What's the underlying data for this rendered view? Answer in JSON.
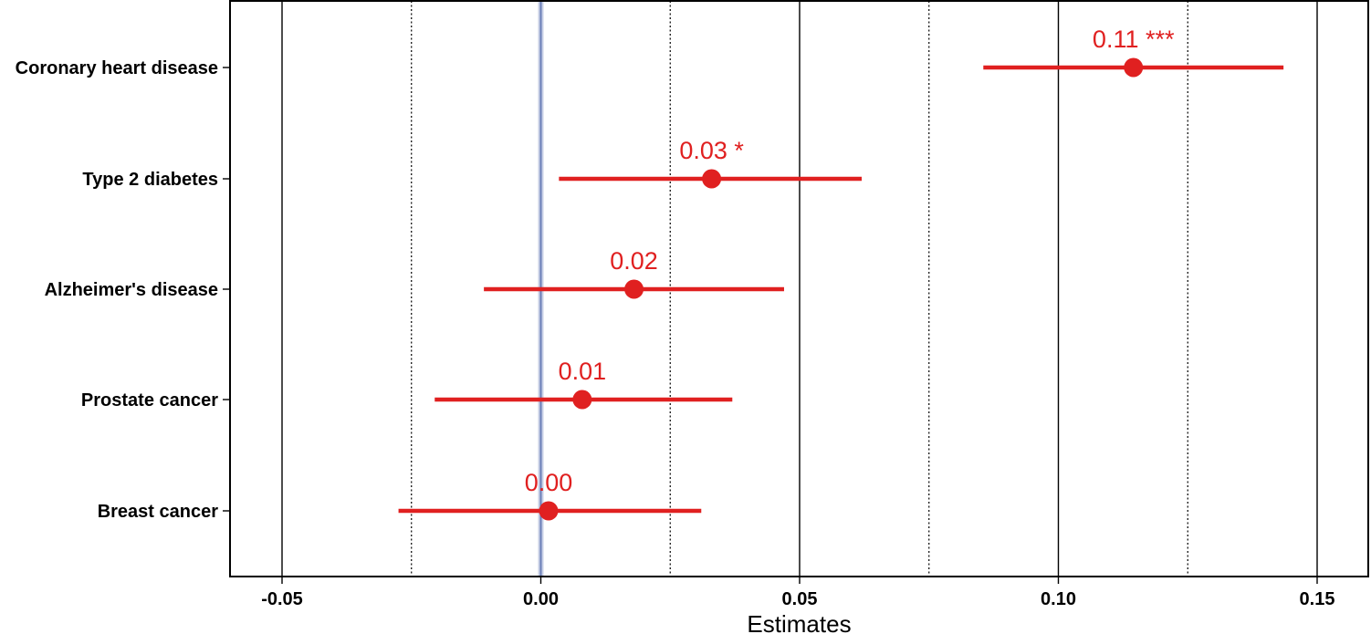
{
  "chart_data": {
    "type": "forest",
    "xlabel": "Estimates",
    "xlim": [
      -0.06,
      0.16
    ],
    "x_ticks": [
      -0.05,
      0.0,
      0.05,
      0.1,
      0.15
    ],
    "x_tick_labels": [
      "-0.05",
      "0.00",
      "0.05",
      "0.10",
      "0.15"
    ],
    "minor_gridlines": [
      -0.025,
      0.025,
      0.075,
      0.125
    ],
    "reference_line": 0,
    "grid": true,
    "colors": {
      "points": "#e02020",
      "reference": "#6b7fb8",
      "grid": "#000000"
    },
    "categories": [
      "Coronary heart disease",
      "Type 2 diabetes",
      "Alzheimer's disease",
      "Prostate cancer",
      "Breast cancer"
    ],
    "estimates": [
      0.1145,
      0.033,
      0.018,
      0.008,
      0.0015
    ],
    "ci_low": [
      0.0855,
      0.0035,
      -0.011,
      -0.0205,
      -0.0275
    ],
    "ci_high": [
      0.1435,
      0.062,
      0.047,
      0.037,
      0.031
    ],
    "labels": [
      "0.11 ***",
      "0.03 *",
      "0.02",
      "0.01",
      "0.00"
    ]
  }
}
